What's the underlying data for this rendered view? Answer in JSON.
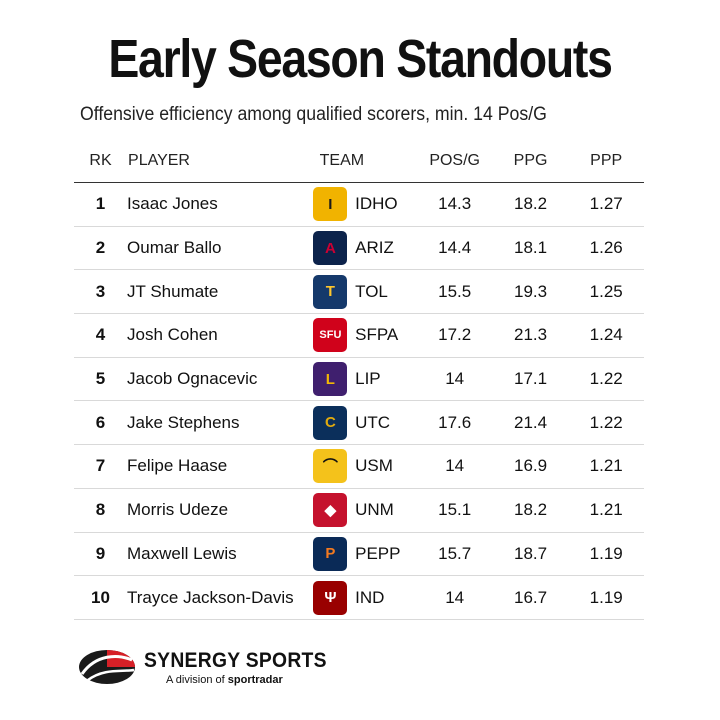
{
  "title": "Early Season Standouts",
  "subtitle": "Offensive efficiency among qualified scorers, min. 14 Pos/G",
  "columns": {
    "rk": "RK",
    "player": "PLAYER",
    "team": "TEAM",
    "pos": "POS/G",
    "ppg": "PPG",
    "ppp": "PPP"
  },
  "rows": [
    {
      "rk": "1",
      "player": "Isaac Jones",
      "team": "IDHO",
      "pos": "14.3",
      "ppg": "18.2",
      "ppp": "1.27",
      "logo_bg": "#F1B300",
      "logo_fg": "#1a1a1a",
      "logo_glyph": "I"
    },
    {
      "rk": "2",
      "player": "Oumar Ballo",
      "team": "ARIZ",
      "pos": "14.4",
      "ppg": "18.1",
      "ppp": "1.26",
      "logo_bg": "#0C234B",
      "logo_fg": "#CC0033",
      "logo_glyph": "A"
    },
    {
      "rk": "3",
      "player": "JT Shumate",
      "team": "TOL",
      "pos": "15.5",
      "ppg": "19.3",
      "ppp": "1.25",
      "logo_bg": "#15396B",
      "logo_fg": "#FFC72C",
      "logo_glyph": "T"
    },
    {
      "rk": "4",
      "player": "Josh Cohen",
      "team": "SFPA",
      "pos": "17.2",
      "ppg": "21.3",
      "ppp": "1.24",
      "logo_bg": "#D0021B",
      "logo_fg": "#ffffff",
      "logo_glyph": "SFU"
    },
    {
      "rk": "5",
      "player": "Jacob Ognacevic",
      "team": "LIP",
      "pos": "14",
      "ppg": "17.1",
      "ppp": "1.22",
      "logo_bg": "#3F1F6E",
      "logo_fg": "#F2B705",
      "logo_glyph": "L"
    },
    {
      "rk": "6",
      "player": "Jake Stephens",
      "team": "UTC",
      "pos": "17.6",
      "ppg": "21.4",
      "ppp": "1.22",
      "logo_bg": "#0B2F5B",
      "logo_fg": "#E0AA0F",
      "logo_glyph": "C"
    },
    {
      "rk": "7",
      "player": "Felipe Haase",
      "team": "USM",
      "pos": "14",
      "ppg": "16.9",
      "ppp": "1.21",
      "logo_bg": "#F4C21B",
      "logo_fg": "#111111",
      "logo_glyph": "⌒"
    },
    {
      "rk": "8",
      "player": "Morris Udeze",
      "team": "UNM",
      "pos": "15.1",
      "ppg": "18.2",
      "ppp": "1.21",
      "logo_bg": "#C5122D",
      "logo_fg": "#ffffff",
      "logo_glyph": "◆"
    },
    {
      "rk": "9",
      "player": "Maxwell Lewis",
      "team": "PEPP",
      "pos": "15.7",
      "ppg": "18.7",
      "ppp": "1.19",
      "logo_bg": "#0A2A57",
      "logo_fg": "#F47A20",
      "logo_glyph": "P"
    },
    {
      "rk": "10",
      "player": "Trayce Jackson-Davis",
      "team": "IND",
      "pos": "14",
      "ppg": "16.7",
      "ppp": "1.19",
      "logo_bg": "#990000",
      "logo_fg": "#ffffff",
      "logo_glyph": "Ψ"
    }
  ],
  "footer": {
    "brand": "SYNERGY SPORTS",
    "sub_prefix": "A division of ",
    "sub_brand": "sportradar",
    "brand_red": "#D62027",
    "brand_dark": "#1a1a1a"
  }
}
